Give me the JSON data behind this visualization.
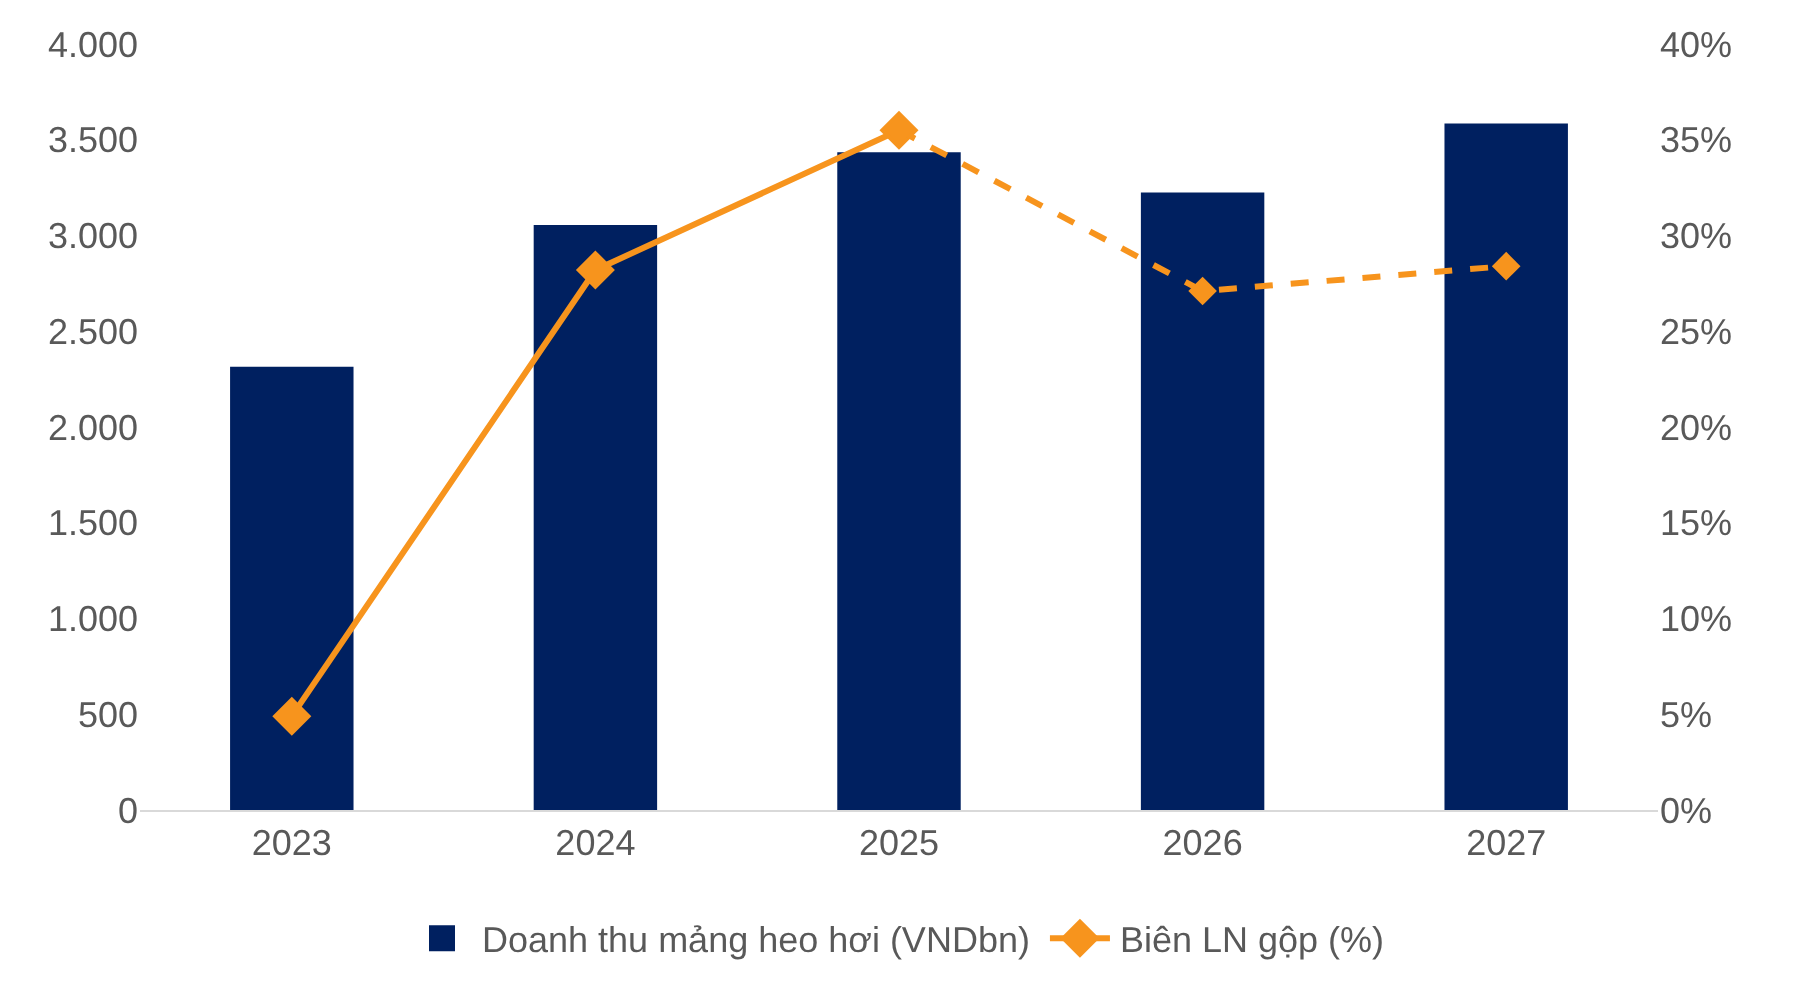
{
  "chart_data": {
    "type": "bar",
    "categories": [
      "2023",
      "2024",
      "2025",
      "2026",
      "2027"
    ],
    "series": [
      {
        "name": "Doanh thu mảng heo hơi (VNDbn)",
        "color": "#002060",
        "values": [
          2310,
          3050,
          3430,
          3220,
          3580
        ]
      },
      {
        "name": "Biên LN gộp (%)",
        "type": "line",
        "axis": "y2",
        "color": "#f7941d",
        "values": [
          4.9,
          28.2,
          35.5,
          null,
          null
        ],
        "marker": "diamond",
        "line_style": "solid"
      },
      {
        "type": "line",
        "axis": "y2",
        "color": "#f7941d",
        "values": [
          null,
          null,
          35.5,
          27.1,
          28.4
        ],
        "marker": "diamond",
        "line_style": "dashed"
      }
    ],
    "ylim": [
      0,
      4000
    ],
    "yticks": [
      0,
      500,
      {
        "value": 1000,
        "label": "1.000"
      },
      {
        "value": 1500,
        "label": "1.500"
      },
      {
        "value": 2000,
        "label": "2.000"
      },
      {
        "value": 2500,
        "label": "2.500"
      },
      {
        "value": 3000,
        "label": "3.000"
      },
      {
        "value": 3500,
        "label": "3.500"
      },
      {
        "value": 4000,
        "label": "4.000"
      }
    ],
    "y2lim": [
      0,
      40
    ],
    "y2ticks": [
      {
        "value": 0,
        "label": "0%"
      },
      {
        "value": 5,
        "label": "5%"
      },
      {
        "value": 10,
        "label": "10%"
      },
      {
        "value": 15,
        "label": "15%"
      },
      {
        "value": 20,
        "label": "20%"
      },
      {
        "value": 25,
        "label": "25%"
      },
      {
        "value": 30,
        "label": "30%"
      },
      {
        "value": 35,
        "label": "35%"
      },
      {
        "value": 40,
        "label": "40%"
      }
    ],
    "legend": "bottom"
  }
}
